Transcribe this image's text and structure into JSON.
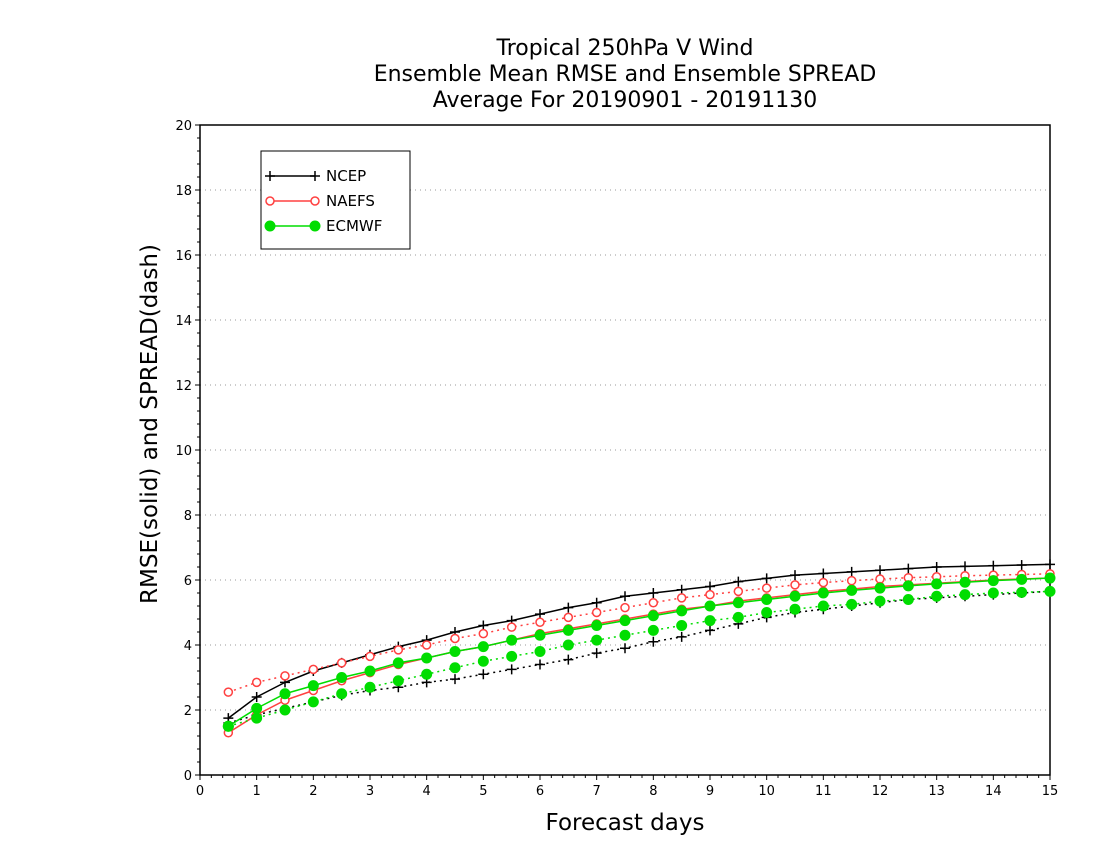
{
  "chart_data": {
    "type": "line",
    "title_lines": [
      "Tropical 250hPa V Wind",
      "Ensemble Mean RMSE and Ensemble SPREAD",
      "Average For 20190901 - 20191130"
    ],
    "xlabel": "Forecast days",
    "ylabel": "RMSE(solid) and SPREAD(dash)",
    "xlim": [
      0,
      15
    ],
    "ylim": [
      0,
      20
    ],
    "x_ticks": [
      "0",
      "1",
      "2",
      "3",
      "4",
      "5",
      "6",
      "7",
      "8",
      "9",
      "10",
      "11",
      "12",
      "13",
      "14",
      "15"
    ],
    "y_ticks": [
      "0",
      "2",
      "4",
      "6",
      "8",
      "10",
      "12",
      "14",
      "16",
      "18",
      "20"
    ],
    "grid": "horizontal dotted",
    "legend_position": "top-left",
    "x": [
      0.5,
      1,
      1.5,
      2,
      2.5,
      3,
      3.5,
      4,
      4.5,
      5,
      5.5,
      6,
      6.5,
      7,
      7.5,
      8,
      8.5,
      9,
      9.5,
      10,
      10.5,
      11,
      11.5,
      12,
      12.5,
      13,
      13.5,
      14,
      14.5,
      15
    ],
    "series": [
      {
        "name": "NCEP",
        "color": "#000000",
        "marker": "plus",
        "rmse": [
          1.75,
          2.4,
          2.85,
          3.2,
          3.45,
          3.7,
          3.95,
          4.15,
          4.4,
          4.6,
          4.75,
          4.95,
          5.15,
          5.3,
          5.5,
          5.6,
          5.7,
          5.8,
          5.95,
          6.05,
          6.15,
          6.2,
          6.25,
          6.3,
          6.35,
          6.4,
          6.42,
          6.44,
          6.46,
          6.48
        ],
        "spread": [
          1.6,
          1.85,
          2.05,
          2.25,
          2.45,
          2.6,
          2.7,
          2.85,
          2.95,
          3.1,
          3.25,
          3.4,
          3.55,
          3.75,
          3.9,
          4.1,
          4.25,
          4.45,
          4.65,
          4.85,
          5.0,
          5.1,
          5.2,
          5.3,
          5.4,
          5.45,
          5.5,
          5.55,
          5.6,
          5.65
        ]
      },
      {
        "name": "NAEFS",
        "color": "#ff4040",
        "marker": "open-circle",
        "rmse": [
          1.3,
          1.85,
          2.3,
          2.6,
          2.9,
          3.15,
          3.4,
          3.6,
          3.8,
          3.95,
          4.15,
          4.35,
          4.5,
          4.65,
          4.8,
          4.95,
          5.1,
          5.2,
          5.35,
          5.45,
          5.55,
          5.65,
          5.72,
          5.8,
          5.85,
          5.9,
          5.95,
          6.0,
          6.03,
          6.06
        ],
        "spread": [
          2.55,
          2.85,
          3.05,
          3.25,
          3.45,
          3.65,
          3.85,
          4.0,
          4.2,
          4.35,
          4.55,
          4.7,
          4.85,
          5.0,
          5.15,
          5.3,
          5.45,
          5.55,
          5.65,
          5.75,
          5.85,
          5.92,
          5.98,
          6.03,
          6.07,
          6.1,
          6.13,
          6.15,
          6.17,
          6.19
        ]
      },
      {
        "name": "ECMWF",
        "color": "#00dd00",
        "marker": "filled-circle",
        "rmse": [
          1.5,
          2.05,
          2.5,
          2.75,
          3.0,
          3.2,
          3.45,
          3.6,
          3.8,
          3.95,
          4.15,
          4.3,
          4.45,
          4.6,
          4.75,
          4.9,
          5.05,
          5.2,
          5.3,
          5.4,
          5.5,
          5.6,
          5.68,
          5.75,
          5.82,
          5.88,
          5.93,
          5.98,
          6.02,
          6.06
        ],
        "spread": [
          1.5,
          1.75,
          2.0,
          2.25,
          2.5,
          2.7,
          2.9,
          3.1,
          3.3,
          3.5,
          3.65,
          3.8,
          4.0,
          4.15,
          4.3,
          4.45,
          4.6,
          4.75,
          4.85,
          5.0,
          5.1,
          5.2,
          5.25,
          5.35,
          5.4,
          5.5,
          5.55,
          5.6,
          5.62,
          5.65
        ]
      }
    ]
  }
}
